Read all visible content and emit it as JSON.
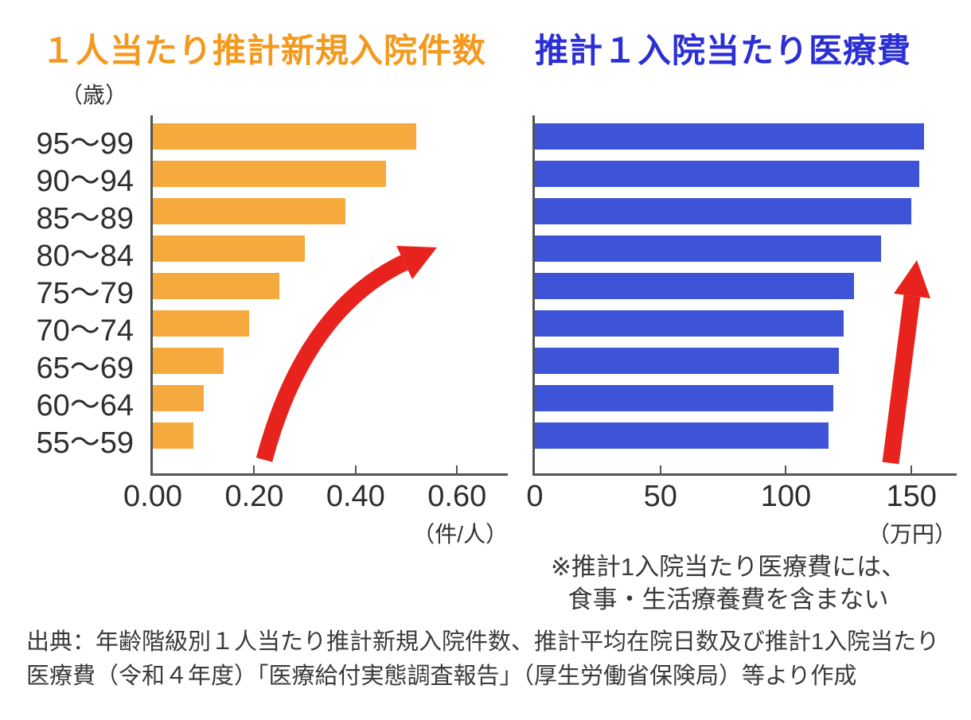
{
  "chart_data": [
    {
      "type": "bar",
      "orientation": "horizontal",
      "title": "１人当たり推計新規入院件数",
      "title_color": "#f39a1e",
      "bar_color": "#f6a93c",
      "y_axis_unit": "（歳）",
      "x_axis_unit": "（件/人）",
      "categories": [
        "95～99",
        "90～94",
        "85～89",
        "80～84",
        "75～79",
        "70～74",
        "65～69",
        "60～64",
        "55～59"
      ],
      "values": [
        0.52,
        0.46,
        0.38,
        0.3,
        0.25,
        0.19,
        0.14,
        0.1,
        0.08
      ],
      "xlim": [
        0,
        0.7
      ],
      "x_ticks": {
        "values": [
          0,
          0.2,
          0.4,
          0.6
        ],
        "labels": [
          "0.00",
          "0.20",
          "0.40",
          "0.60"
        ]
      },
      "legend": "none",
      "grid": false
    },
    {
      "type": "bar",
      "orientation": "horizontal",
      "title": "推計１入院当たり医療費",
      "title_color": "#2b2fd4",
      "bar_color": "#3d53d8",
      "x_axis_unit": "（万円）",
      "categories": [
        "95～99",
        "90～94",
        "85～89",
        "80～84",
        "75～79",
        "70～74",
        "65～69",
        "60～64",
        "55～59"
      ],
      "values": [
        155,
        153,
        150,
        138,
        127,
        123,
        121,
        119,
        117
      ],
      "xlim": [
        0,
        168
      ],
      "x_ticks": {
        "values": [
          0,
          50,
          100,
          150
        ],
        "labels": [
          "0",
          "50",
          "100",
          "150"
        ]
      },
      "legend": "none",
      "grid": false
    }
  ],
  "annotations": {
    "footnote_lines": [
      "※推計1入院当たり医療費には、",
      "食事・生活療養費を含まない"
    ],
    "source_lines": [
      "出典：年齢階級別１人当たり推計新規入院件数、推計平均在院日数及び推計1入院当たり",
      "医療費（令和４年度）「医療給付実態調査報告」（厚生労働省保険局）等より作成"
    ]
  },
  "colors": {
    "arrow_red": "#e8231e",
    "axis": "#555555",
    "text": "#303030",
    "background": "#ffffff"
  }
}
